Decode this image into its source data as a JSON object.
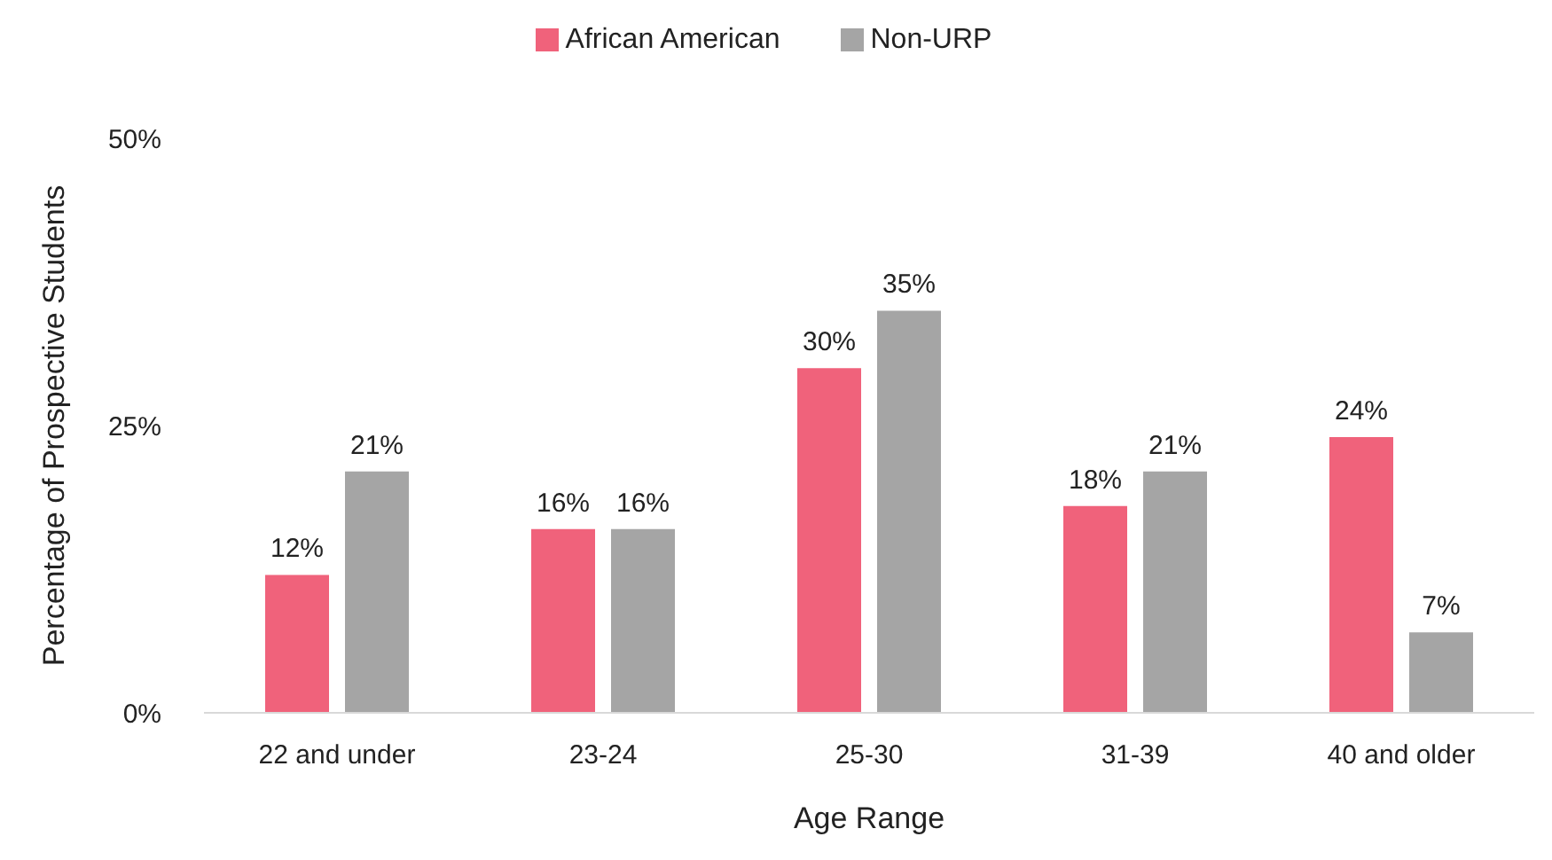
{
  "chart_data": {
    "type": "bar",
    "xlabel": "Age Range",
    "ylabel": "Percentage of Prospective Students",
    "categories": [
      "22 and under",
      "23-24",
      "25-30",
      "31-39",
      "40 and older"
    ],
    "series": [
      {
        "name": "African American",
        "color": "#f0627b",
        "values": [
          12,
          16,
          30,
          18,
          24
        ],
        "value_labels": [
          "12%",
          "16%",
          "30%",
          "18%",
          "24%"
        ]
      },
      {
        "name": "Non-URP",
        "color": "#a5a5a5",
        "values": [
          21,
          16,
          35,
          21,
          7
        ],
        "value_labels": [
          "21%",
          "16%",
          "35%",
          "21%",
          "7%"
        ]
      }
    ],
    "ylim": [
      0,
      50
    ],
    "yticks": [
      {
        "value": 0,
        "label": "0%"
      },
      {
        "value": 25,
        "label": "25%"
      },
      {
        "value": 50,
        "label": "50%"
      }
    ],
    "grid": false,
    "legend": "top"
  }
}
